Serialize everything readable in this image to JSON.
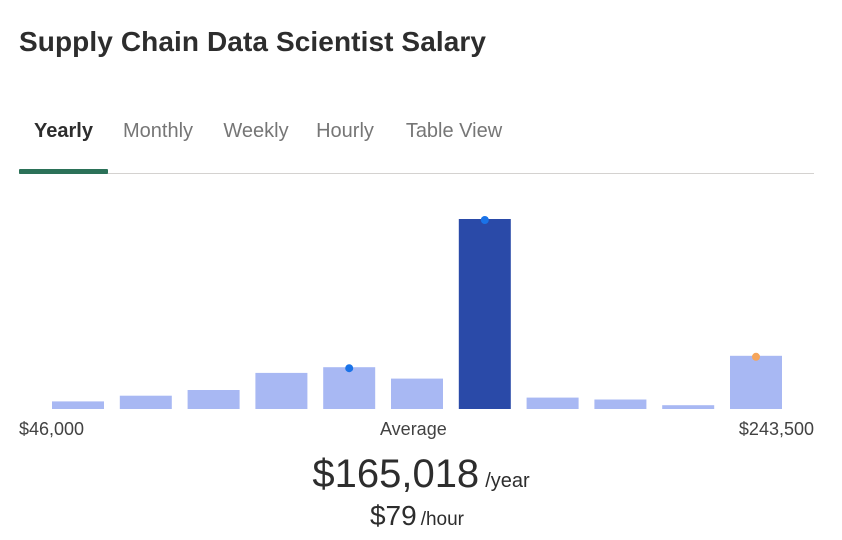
{
  "page": {
    "title": "Supply Chain Data Scientist Salary"
  },
  "tabs": [
    {
      "label": "Yearly",
      "active": true
    },
    {
      "label": "Monthly",
      "active": false
    },
    {
      "label": "Weekly",
      "active": false
    },
    {
      "label": "Hourly",
      "active": false
    },
    {
      "label": "Table View",
      "active": false
    }
  ],
  "colors": {
    "bar": "#a8b8f3",
    "bar_highlight": "#2a4aa8",
    "marker_blue": "#1a73e8",
    "marker_orange": "#f5a55b",
    "tab_underline": "#2b7158"
  },
  "chart_data": {
    "type": "bar",
    "bins": 11,
    "values": [
      4,
      7,
      10,
      19,
      22,
      16,
      100,
      6,
      5,
      2,
      28
    ],
    "highlight_index": 6,
    "markers": [
      {
        "bin": 4,
        "color": "blue"
      },
      {
        "bin": 6,
        "color": "blue"
      },
      {
        "bin": 10,
        "color": "orange"
      }
    ],
    "x_min_label": "$46,000",
    "x_avg_label": "Average",
    "x_max_label": "$243,500"
  },
  "pay": {
    "yearly_amount": "$165,018",
    "yearly_unit": "/year",
    "hourly_amount": "$79",
    "hourly_unit": "/hour"
  }
}
